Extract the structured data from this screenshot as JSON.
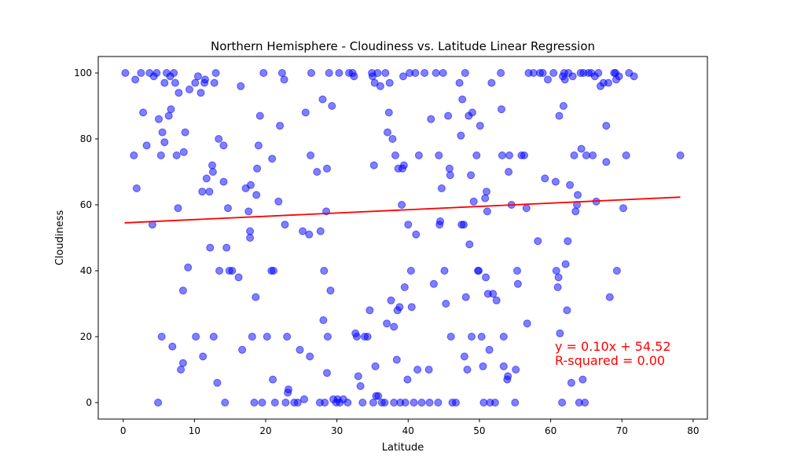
{
  "chart_data": {
    "type": "scatter",
    "title": "Northern Hemisphere - Cloudiness vs. Latitude Linear Regression",
    "xlabel": "Latitude",
    "ylabel": "Cloudiness",
    "xlim": [
      -3.5,
      82
    ],
    "ylim": [
      -5,
      105
    ],
    "xticks": [
      0,
      10,
      20,
      30,
      40,
      50,
      60,
      70,
      80
    ],
    "yticks": [
      0,
      20,
      40,
      60,
      80,
      100
    ],
    "grid": false,
    "point_color": "#0000ff",
    "line_color": "#ff0000",
    "regression": {
      "slope": 0.1,
      "intercept": 54.52,
      "x_range": [
        0.2,
        78.2
      ]
    },
    "annotation": [
      "y = 0.10x + 54.52",
      "R-squared = 0.00"
    ],
    "points": [
      [
        0.3,
        100
      ],
      [
        1.5,
        75
      ],
      [
        1.7,
        98
      ],
      [
        1.9,
        65
      ],
      [
        2.5,
        100
      ],
      [
        2.8,
        88
      ],
      [
        3.3,
        78
      ],
      [
        3.7,
        100
      ],
      [
        4.1,
        54
      ],
      [
        4.3,
        99
      ],
      [
        4.7,
        100
      ],
      [
        4.9,
        0
      ],
      [
        5.0,
        86
      ],
      [
        5.3,
        75
      ],
      [
        5.4,
        20
      ],
      [
        5.5,
        82
      ],
      [
        5.8,
        97
      ],
      [
        5.8,
        79
      ],
      [
        6.1,
        100
      ],
      [
        6.4,
        87
      ],
      [
        6.6,
        99
      ],
      [
        6.7,
        89
      ],
      [
        6.9,
        17
      ],
      [
        7.1,
        100
      ],
      [
        7.3,
        97
      ],
      [
        7.5,
        75
      ],
      [
        7.7,
        59
      ],
      [
        7.8,
        94
      ],
      [
        8.1,
        10
      ],
      [
        8.4,
        34
      ],
      [
        8.4,
        12
      ],
      [
        8.5,
        76
      ],
      [
        8.7,
        82
      ],
      [
        9.1,
        41
      ],
      [
        9.3,
        95
      ],
      [
        10.1,
        97
      ],
      [
        10.2,
        20
      ],
      [
        10.5,
        99
      ],
      [
        10.9,
        94
      ],
      [
        11.1,
        64
      ],
      [
        11.2,
        14
      ],
      [
        11.4,
        97
      ],
      [
        11.5,
        98
      ],
      [
        11.7,
        68
      ],
      [
        12.1,
        64
      ],
      [
        12.2,
        47
      ],
      [
        12.5,
        72
      ],
      [
        12.6,
        70
      ],
      [
        12.7,
        20
      ],
      [
        12.8,
        97
      ],
      [
        13.0,
        100
      ],
      [
        13.2,
        6
      ],
      [
        13.4,
        80
      ],
      [
        13.5,
        40
      ],
      [
        14.1,
        67
      ],
      [
        14.1,
        78
      ],
      [
        14.3,
        0
      ],
      [
        14.5,
        47
      ],
      [
        14.7,
        59
      ],
      [
        14.9,
        40
      ],
      [
        15.3,
        40
      ],
      [
        16.2,
        38
      ],
      [
        16.5,
        96
      ],
      [
        16.7,
        16
      ],
      [
        17.2,
        65
      ],
      [
        17.6,
        58
      ],
      [
        17.8,
        52
      ],
      [
        17.8,
        50
      ],
      [
        17.9,
        66
      ],
      [
        18.1,
        20
      ],
      [
        18.4,
        0
      ],
      [
        18.6,
        32
      ],
      [
        18.7,
        63
      ],
      [
        18.8,
        71
      ],
      [
        19.0,
        78
      ],
      [
        19.2,
        87
      ],
      [
        19.5,
        0
      ],
      [
        19.7,
        100
      ],
      [
        20.2,
        20
      ],
      [
        20.8,
        40
      ],
      [
        20.9,
        74
      ],
      [
        21.0,
        7
      ],
      [
        21.1,
        40
      ],
      [
        21.3,
        0
      ],
      [
        21.8,
        61
      ],
      [
        22.0,
        84
      ],
      [
        22.3,
        100
      ],
      [
        22.6,
        98
      ],
      [
        22.7,
        54
      ],
      [
        22.8,
        0
      ],
      [
        23.0,
        20
      ],
      [
        23.1,
        3
      ],
      [
        23.2,
        4
      ],
      [
        24.0,
        0
      ],
      [
        24.5,
        0
      ],
      [
        24.8,
        16
      ],
      [
        25.2,
        52
      ],
      [
        25.4,
        1
      ],
      [
        25.6,
        88
      ],
      [
        26.1,
        51
      ],
      [
        26.2,
        14
      ],
      [
        26.3,
        75
      ],
      [
        26.4,
        100
      ],
      [
        27.2,
        70
      ],
      [
        27.6,
        0
      ],
      [
        27.7,
        52
      ],
      [
        28.0,
        92
      ],
      [
        28.1,
        25
      ],
      [
        28.2,
        40
      ],
      [
        28.3,
        0
      ],
      [
        28.5,
        58
      ],
      [
        28.6,
        71
      ],
      [
        28.6,
        9
      ],
      [
        28.7,
        20
      ],
      [
        28.9,
        100
      ],
      [
        29.1,
        34
      ],
      [
        29.3,
        90
      ],
      [
        29.5,
        1
      ],
      [
        29.9,
        0
      ],
      [
        30.1,
        1
      ],
      [
        30.3,
        100
      ],
      [
        30.4,
        0
      ],
      [
        30.9,
        1
      ],
      [
        31.5,
        0
      ],
      [
        31.7,
        100
      ],
      [
        32.2,
        100
      ],
      [
        32.4,
        99
      ],
      [
        32.6,
        21
      ],
      [
        32.8,
        20
      ],
      [
        33.0,
        8
      ],
      [
        33.3,
        5
      ],
      [
        33.6,
        0
      ],
      [
        33.9,
        20
      ],
      [
        34.3,
        20
      ],
      [
        34.6,
        28
      ],
      [
        34.9,
        100
      ],
      [
        35.0,
        99
      ],
      [
        35.1,
        0
      ],
      [
        35.2,
        72
      ],
      [
        35.3,
        97
      ],
      [
        35.4,
        11
      ],
      [
        35.5,
        2
      ],
      [
        35.7,
        100
      ],
      [
        35.8,
        2
      ],
      [
        36.1,
        96
      ],
      [
        36.3,
        0
      ],
      [
        36.7,
        0
      ],
      [
        36.8,
        100
      ],
      [
        37.0,
        24
      ],
      [
        37.1,
        82
      ],
      [
        37.3,
        88
      ],
      [
        37.4,
        97
      ],
      [
        37.6,
        31
      ],
      [
        37.8,
        80
      ],
      [
        38.0,
        0
      ],
      [
        38.0,
        23
      ],
      [
        38.2,
        75
      ],
      [
        38.4,
        13
      ],
      [
        38.5,
        28
      ],
      [
        38.6,
        71
      ],
      [
        38.8,
        29
      ],
      [
        38.9,
        0
      ],
      [
        39.1,
        60
      ],
      [
        39.2,
        71
      ],
      [
        39.3,
        99
      ],
      [
        39.4,
        72
      ],
      [
        39.5,
        35
      ],
      [
        39.6,
        0
      ],
      [
        39.9,
        7
      ],
      [
        40.0,
        54
      ],
      [
        40.2,
        100
      ],
      [
        40.4,
        40
      ],
      [
        40.5,
        29
      ],
      [
        40.8,
        0
      ],
      [
        41.0,
        100
      ],
      [
        41.1,
        51
      ],
      [
        41.3,
        10
      ],
      [
        41.5,
        75
      ],
      [
        41.9,
        0
      ],
      [
        42.3,
        100
      ],
      [
        42.9,
        10
      ],
      [
        43.0,
        0
      ],
      [
        43.2,
        86
      ],
      [
        43.6,
        36
      ],
      [
        43.9,
        100
      ],
      [
        44.2,
        0
      ],
      [
        44.3,
        75
      ],
      [
        44.4,
        54
      ],
      [
        44.5,
        55
      ],
      [
        44.7,
        65
      ],
      [
        44.9,
        100
      ],
      [
        45.1,
        40
      ],
      [
        45.3,
        30
      ],
      [
        45.6,
        87
      ],
      [
        45.8,
        71
      ],
      [
        45.9,
        69
      ],
      [
        46.0,
        20
      ],
      [
        46.2,
        0
      ],
      [
        46.7,
        0
      ],
      [
        47.2,
        97
      ],
      [
        47.4,
        81
      ],
      [
        47.5,
        54
      ],
      [
        47.6,
        92
      ],
      [
        47.8,
        54
      ],
      [
        47.9,
        14
      ],
      [
        48.0,
        100
      ],
      [
        48.1,
        32
      ],
      [
        48.3,
        10
      ],
      [
        48.5,
        87
      ],
      [
        48.6,
        48
      ],
      [
        48.8,
        69
      ],
      [
        48.9,
        20
      ],
      [
        49.0,
        88
      ],
      [
        49.2,
        61
      ],
      [
        49.6,
        75
      ],
      [
        49.8,
        40
      ],
      [
        49.9,
        40
      ],
      [
        50.1,
        84
      ],
      [
        50.3,
        20
      ],
      [
        50.5,
        11
      ],
      [
        50.6,
        0
      ],
      [
        50.8,
        62
      ],
      [
        50.9,
        38
      ],
      [
        51.0,
        64
      ],
      [
        51.1,
        58
      ],
      [
        51.2,
        33
      ],
      [
        51.4,
        16
      ],
      [
        51.5,
        0
      ],
      [
        51.7,
        97
      ],
      [
        51.9,
        33
      ],
      [
        52.2,
        0
      ],
      [
        52.4,
        31
      ],
      [
        53.0,
        100
      ],
      [
        53.1,
        89
      ],
      [
        53.2,
        75
      ],
      [
        53.4,
        20
      ],
      [
        53.4,
        11
      ],
      [
        53.9,
        7
      ],
      [
        54.0,
        8
      ],
      [
        54.1,
        70
      ],
      [
        54.2,
        75
      ],
      [
        54.5,
        60
      ],
      [
        55.0,
        0
      ],
      [
        55.1,
        10
      ],
      [
        55.3,
        40
      ],
      [
        55.4,
        36
      ],
      [
        55.9,
        75
      ],
      [
        56.3,
        75
      ],
      [
        56.6,
        59
      ],
      [
        56.7,
        24
      ],
      [
        56.9,
        100
      ],
      [
        57.6,
        100
      ],
      [
        58.2,
        49
      ],
      [
        58.5,
        100
      ],
      [
        58.9,
        100
      ],
      [
        59.2,
        68
      ],
      [
        59.6,
        98
      ],
      [
        60.4,
        100
      ],
      [
        60.7,
        67
      ],
      [
        60.8,
        40
      ],
      [
        61.0,
        35
      ],
      [
        61.1,
        38
      ],
      [
        61.2,
        87
      ],
      [
        61.3,
        21
      ],
      [
        61.6,
        0
      ],
      [
        61.7,
        99
      ],
      [
        61.8,
        90
      ],
      [
        61.9,
        100
      ],
      [
        62.0,
        98
      ],
      [
        62.1,
        42
      ],
      [
        62.3,
        28
      ],
      [
        62.4,
        49
      ],
      [
        62.5,
        100
      ],
      [
        62.7,
        66
      ],
      [
        62.9,
        6
      ],
      [
        63.1,
        99
      ],
      [
        63.3,
        75
      ],
      [
        63.5,
        58
      ],
      [
        63.7,
        60
      ],
      [
        63.8,
        63
      ],
      [
        64.0,
        0
      ],
      [
        64.2,
        100
      ],
      [
        64.3,
        77
      ],
      [
        64.5,
        7
      ],
      [
        64.6,
        100
      ],
      [
        64.8,
        0
      ],
      [
        65.0,
        75
      ],
      [
        65.3,
        100
      ],
      [
        65.7,
        100
      ],
      [
        65.9,
        75
      ],
      [
        66.2,
        99
      ],
      [
        66.4,
        61
      ],
      [
        66.7,
        100
      ],
      [
        67.0,
        96
      ],
      [
        67.4,
        97
      ],
      [
        67.8,
        84
      ],
      [
        67.8,
        73
      ],
      [
        68.1,
        97
      ],
      [
        68.3,
        32
      ],
      [
        68.9,
        100
      ],
      [
        69.1,
        100
      ],
      [
        69.2,
        98
      ],
      [
        69.3,
        40
      ],
      [
        69.6,
        99
      ],
      [
        70.2,
        59
      ],
      [
        70.6,
        75
      ],
      [
        71.0,
        100
      ],
      [
        71.7,
        99
      ],
      [
        78.2,
        75
      ]
    ]
  }
}
